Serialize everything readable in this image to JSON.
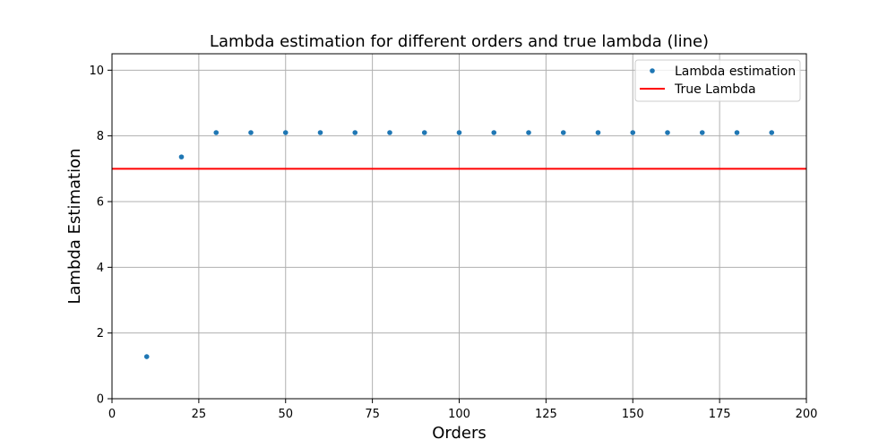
{
  "chart_data": {
    "type": "scatter",
    "title": "Lambda estimation for different orders and true lambda (line)",
    "xlabel": "Orders",
    "ylabel": "Lambda Estimation",
    "xlim": [
      0,
      200
    ],
    "ylim": [
      0,
      10.5
    ],
    "xticks": [
      0,
      25,
      50,
      75,
      100,
      125,
      150,
      175,
      200
    ],
    "yticks": [
      0,
      2,
      4,
      6,
      8,
      10
    ],
    "grid": true,
    "legend_position": "top-right",
    "series": [
      {
        "name": "Lambda estimation",
        "kind": "scatter",
        "color": "#1f77b4",
        "x": [
          10,
          20,
          30,
          40,
          50,
          60,
          70,
          80,
          90,
          100,
          110,
          120,
          130,
          140,
          150,
          160,
          170,
          180,
          190
        ],
        "y": [
          1.28,
          7.36,
          8.1,
          8.1,
          8.1,
          8.1,
          8.1,
          8.1,
          8.1,
          8.1,
          8.1,
          8.1,
          8.1,
          8.1,
          8.1,
          8.1,
          8.1,
          8.1,
          8.1
        ]
      },
      {
        "name": "True Lambda",
        "kind": "hline",
        "color": "#ff0000",
        "y": 7
      }
    ]
  }
}
